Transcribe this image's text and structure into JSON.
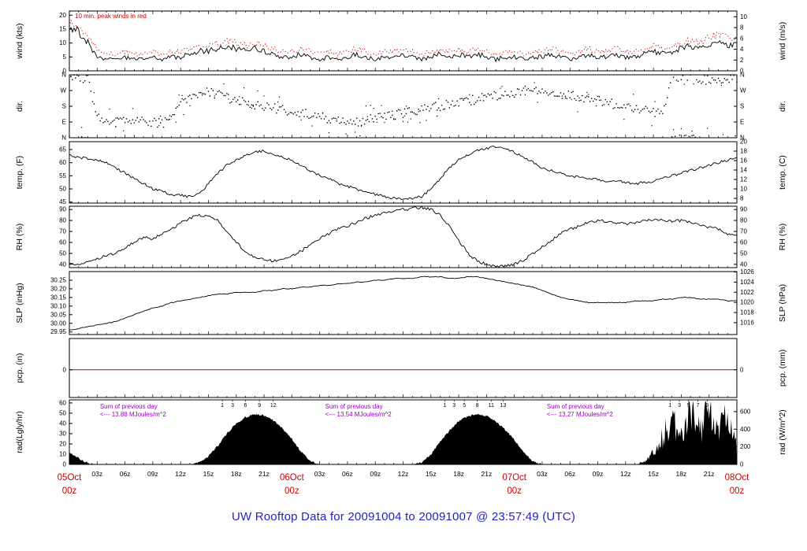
{
  "page": {
    "title": "UW Rooftop Data for 20091004  to  20091007 @ 23:57:49  (UTC)",
    "title_color": "#2222cc"
  },
  "chart_data": {
    "type": "line",
    "x_axis": {
      "unit": "hours since 05 Oct 2009 00z",
      "start_hour": 0,
      "end_hour": 72,
      "hour_labels": [
        {
          "hour": 3,
          "label": "03z"
        },
        {
          "hour": 6,
          "label": "06z"
        },
        {
          "hour": 9,
          "label": "09z"
        },
        {
          "hour": 12,
          "label": "12z"
        },
        {
          "hour": 15,
          "label": "15z"
        },
        {
          "hour": 18,
          "label": "18z"
        },
        {
          "hour": 21,
          "label": "21z"
        },
        {
          "hour": 27,
          "label": "03z"
        },
        {
          "hour": 30,
          "label": "06z"
        },
        {
          "hour": 33,
          "label": "09z"
        },
        {
          "hour": 36,
          "label": "12z"
        },
        {
          "hour": 39,
          "label": "15z"
        },
        {
          "hour": 42,
          "label": "18z"
        },
        {
          "hour": 45,
          "label": "21z"
        },
        {
          "hour": 51,
          "label": "03z"
        },
        {
          "hour": 54,
          "label": "06z"
        },
        {
          "hour": 57,
          "label": "09z"
        },
        {
          "hour": 60,
          "label": "12z"
        },
        {
          "hour": 63,
          "label": "15z"
        },
        {
          "hour": 66,
          "label": "18z"
        },
        {
          "hour": 69,
          "label": "21z"
        }
      ],
      "day_ticks": [
        {
          "hour": 0,
          "date": "05Oct",
          "time": "00z"
        },
        {
          "hour": 24,
          "date": "06Oct",
          "time": "00z"
        },
        {
          "hour": 48,
          "date": "07Oct",
          "time": "00z"
        },
        {
          "hour": 72,
          "date": "08Oct",
          "time": "00z"
        }
      ]
    },
    "colors": {
      "line": "#000000",
      "peak_wind": "#cc0000",
      "precip_line": "#cc0000",
      "day_label": "#cc0000",
      "annotation_purple": "#9900bb",
      "wind_note_red": "#cc0000"
    },
    "panels": [
      {
        "id": "wind",
        "ylabel_left": "wind (kts)",
        "ylabel_right": "wind (m/s)",
        "left_domain": [
          0,
          21.5
        ],
        "right_domain": [
          0,
          11.06
        ],
        "left_ticks": [
          {
            "v": 0,
            "label": "0"
          },
          {
            "v": 5,
            "label": "5"
          },
          {
            "v": 10,
            "label": "10"
          },
          {
            "v": 15,
            "label": "15"
          },
          {
            "v": 20,
            "label": "20"
          }
        ],
        "right_ticks": [
          {
            "v": 0,
            "label": "0"
          },
          {
            "v": 2,
            "label": "2"
          },
          {
            "v": 4,
            "label": "4"
          },
          {
            "v": 6,
            "label": "6"
          },
          {
            "v": 8,
            "label": "8"
          },
          {
            "v": 10,
            "label": "10"
          }
        ],
        "series": [
          "wind_kts",
          "peak_wind_kts"
        ]
      },
      {
        "id": "dir",
        "ylabel_left": "dir.",
        "ylabel_right": "dir.",
        "left_domain": [
          0,
          360
        ],
        "right_domain": [
          0,
          360
        ],
        "left_ticks": [
          {
            "v": 0,
            "label": "N"
          },
          {
            "v": 90,
            "label": "E"
          },
          {
            "v": 180,
            "label": "S"
          },
          {
            "v": 270,
            "label": "W"
          },
          {
            "v": 360,
            "label": "N"
          }
        ],
        "right_ticks": [
          {
            "v": 0,
            "label": "N"
          },
          {
            "v": 90,
            "label": "E"
          },
          {
            "v": 180,
            "label": "S"
          },
          {
            "v": 270,
            "label": "W"
          },
          {
            "v": 360,
            "label": "N"
          }
        ],
        "series": [
          "dir_deg"
        ]
      },
      {
        "id": "temp",
        "ylabel_left": "temp. (F)",
        "ylabel_right": "temp. (C)",
        "left_domain": [
          44.6,
          68
        ],
        "right_domain": [
          7,
          20
        ],
        "left_ticks": [
          {
            "v": 45,
            "label": "45"
          },
          {
            "v": 50,
            "label": "50"
          },
          {
            "v": 55,
            "label": "55"
          },
          {
            "v": 60,
            "label": "60"
          },
          {
            "v": 65,
            "label": "65"
          }
        ],
        "right_ticks": [
          {
            "v": 8,
            "label": "8"
          },
          {
            "v": 10,
            "label": "10"
          },
          {
            "v": 12,
            "label": "12"
          },
          {
            "v": 14,
            "label": "14"
          },
          {
            "v": 16,
            "label": "16"
          },
          {
            "v": 18,
            "label": "18"
          },
          {
            "v": 20,
            "label": "20"
          }
        ],
        "series": [
          "temp_f"
        ]
      },
      {
        "id": "rh",
        "ylabel_left": "RH (%)",
        "ylabel_right": "RH (%)",
        "left_domain": [
          37,
          93
        ],
        "right_domain": [
          37,
          93
        ],
        "left_ticks": [
          {
            "v": 40,
            "label": "40"
          },
          {
            "v": 50,
            "label": "50"
          },
          {
            "v": 60,
            "label": "60"
          },
          {
            "v": 70,
            "label": "70"
          },
          {
            "v": 80,
            "label": "80"
          },
          {
            "v": 90,
            "label": "90"
          }
        ],
        "right_ticks": [
          {
            "v": 40,
            "label": "40"
          },
          {
            "v": 50,
            "label": "50"
          },
          {
            "v": 60,
            "label": "60"
          },
          {
            "v": 70,
            "label": "70"
          },
          {
            "v": 80,
            "label": "80"
          },
          {
            "v": 90,
            "label": "90"
          }
        ],
        "series": [
          "slp_placeholder_rh"
        ]
      },
      {
        "id": "slp",
        "ylabel_left": "SLP (inHg)",
        "ylabel_right": "SLP (hPa)",
        "left_domain": [
          29.935,
          30.3
        ],
        "right_domain": [
          1013.66,
          1026.08
        ],
        "left_ticks": [
          {
            "v": 29.95,
            "label": "29.95"
          },
          {
            "v": 30.0,
            "label": "30.00"
          },
          {
            "v": 30.05,
            "label": "30.05"
          },
          {
            "v": 30.1,
            "label": "30.10"
          },
          {
            "v": 30.15,
            "label": "30.15"
          },
          {
            "v": 30.2,
            "label": "30.20"
          },
          {
            "v": 30.25,
            "label": "30.25"
          }
        ],
        "right_ticks": [
          {
            "v": 1016,
            "label": "1016"
          },
          {
            "v": 1018,
            "label": "1018"
          },
          {
            "v": 1020,
            "label": "1020"
          },
          {
            "v": 1022,
            "label": "1022"
          },
          {
            "v": 1024,
            "label": "1024"
          },
          {
            "v": 1026,
            "label": "1026"
          }
        ],
        "series": [
          "slp_inhg"
        ]
      },
      {
        "id": "pcp",
        "ylabel_left": "pcp. (in)",
        "ylabel_right": "pcp. (mm)",
        "left_domain": [
          -0.47,
          0.53
        ],
        "right_domain": [
          -0.47,
          0.53
        ],
        "left_ticks": [
          {
            "v": 0,
            "label": "0"
          }
        ],
        "right_ticks": [
          {
            "v": 0,
            "label": "0"
          }
        ],
        "series": [
          "pcp_in_constant"
        ]
      },
      {
        "id": "rad",
        "ylabel_left": "rad(Lgly/hr)",
        "ylabel_right": "rad (W/m^2)",
        "left_domain": [
          0,
          63
        ],
        "right_domain": [
          0,
          733
        ],
        "left_ticks": [
          {
            "v": 0,
            "label": "0"
          },
          {
            "v": 10,
            "label": "10"
          },
          {
            "v": 20,
            "label": "20"
          },
          {
            "v": 30,
            "label": "30"
          },
          {
            "v": 40,
            "label": "40"
          },
          {
            "v": 50,
            "label": "50"
          },
          {
            "v": 60,
            "label": "60"
          }
        ],
        "right_ticks": [
          {
            "v": 0,
            "label": "0"
          },
          {
            "v": 200,
            "label": "200"
          },
          {
            "v": 400,
            "label": "400"
          },
          {
            "v": 600,
            "label": "600"
          }
        ],
        "series": [
          "rad_lgly"
        ]
      }
    ],
    "series": {
      "note": "hourly values, index = hours since 05Oct 00z (0..72)",
      "wind_kts": [
        15,
        14,
        10,
        5,
        4,
        4,
        5,
        4,
        4,
        5,
        4,
        5,
        5,
        6,
        7,
        7,
        8,
        9,
        8,
        7,
        8,
        7,
        6,
        5,
        5,
        6,
        5,
        4,
        5,
        4,
        5,
        6,
        5,
        4,
        5,
        5,
        6,
        5,
        4,
        5,
        6,
        5,
        6,
        5,
        6,
        5,
        4,
        5,
        5,
        4,
        5,
        5,
        6,
        5,
        4,
        5,
        6,
        5,
        5,
        6,
        5,
        5,
        6,
        7,
        6,
        7,
        8,
        9,
        8,
        9,
        10,
        9,
        9
      ],
      "peak_wind_kts": [
        17,
        16,
        13,
        7,
        6,
        6,
        7,
        6,
        6,
        7,
        6,
        7,
        7,
        8,
        9,
        9,
        10,
        11,
        10,
        9,
        10,
        9,
        8,
        7,
        7,
        8,
        7,
        6,
        7,
        6,
        7,
        8,
        7,
        6,
        7,
        7,
        8,
        7,
        6,
        7,
        8,
        7,
        8,
        7,
        8,
        7,
        6,
        7,
        7,
        6,
        7,
        7,
        8,
        7,
        6,
        7,
        8,
        7,
        7,
        8,
        7,
        7,
        8,
        9,
        8,
        9,
        10,
        11,
        10,
        12,
        13,
        12,
        12
      ],
      "dir_deg": [
        350,
        345,
        340,
        120,
        100,
        90,
        110,
        95,
        100,
        90,
        85,
        95,
        200,
        220,
        240,
        260,
        250,
        230,
        210,
        200,
        190,
        180,
        170,
        160,
        150,
        140,
        130,
        120,
        110,
        100,
        95,
        90,
        100,
        110,
        120,
        130,
        140,
        150,
        160,
        170,
        180,
        190,
        200,
        210,
        220,
        230,
        240,
        250,
        260,
        270,
        280,
        270,
        260,
        250,
        240,
        230,
        220,
        210,
        200,
        190,
        180,
        170,
        160,
        150,
        140,
        345,
        350,
        355,
        340,
        330,
        335,
        340,
        345
      ],
      "temp_f": [
        63,
        62,
        61.5,
        61,
        60,
        58,
        56,
        54,
        52,
        50,
        49,
        48,
        47.5,
        47,
        48,
        52,
        56,
        59,
        61,
        63,
        64,
        64.5,
        63,
        62,
        61,
        59,
        57,
        55,
        54,
        52,
        51,
        50,
        49,
        48,
        47,
        46.5,
        46,
        46.5,
        47,
        50,
        54,
        58,
        61,
        63,
        64.5,
        65.5,
        66,
        65,
        64,
        62,
        60,
        58,
        57,
        56,
        55,
        54.5,
        54,
        53.5,
        53,
        53,
        52.5,
        52,
        52.5,
        53,
        54,
        55,
        56,
        57,
        58,
        59,
        60,
        61,
        62
      ],
      "rh_pct": [
        41,
        40,
        42,
        45,
        48,
        50,
        55,
        60,
        65,
        63,
        68,
        72,
        78,
        82,
        85,
        84,
        80,
        70,
        60,
        52,
        46,
        44,
        43,
        45,
        48,
        52,
        58,
        64,
        68,
        72,
        75,
        78,
        82,
        85,
        87,
        88,
        90,
        91,
        92,
        90,
        85,
        75,
        62,
        50,
        43,
        40,
        38,
        39,
        40,
        44,
        50,
        56,
        62,
        68,
        72,
        75,
        78,
        80,
        79,
        78,
        77,
        78,
        80,
        81,
        80,
        79,
        80,
        78,
        76,
        74,
        72,
        68,
        65
      ],
      "slp_inhg": [
        29.96,
        29.97,
        29.98,
        29.99,
        30.0,
        30.01,
        30.03,
        30.05,
        30.07,
        30.09,
        30.1,
        30.12,
        30.13,
        30.14,
        30.15,
        30.16,
        30.17,
        30.17,
        30.18,
        30.18,
        30.18,
        30.19,
        30.19,
        30.2,
        30.2,
        30.21,
        30.21,
        30.22,
        30.22,
        30.23,
        30.23,
        30.24,
        30.24,
        30.25,
        30.25,
        30.26,
        30.26,
        30.26,
        30.27,
        30.27,
        30.27,
        30.26,
        30.26,
        30.27,
        30.27,
        30.26,
        30.25,
        30.24,
        30.23,
        30.22,
        30.21,
        30.19,
        30.17,
        30.15,
        30.14,
        30.13,
        30.12,
        30.12,
        30.12,
        30.12,
        30.12,
        30.13,
        30.13,
        30.13,
        30.14,
        30.14,
        30.15,
        30.15,
        30.14,
        30.14,
        30.14,
        30.13,
        30.13
      ],
      "pcp_in_constant": 0,
      "rad_lgly": [
        12,
        6,
        1,
        0,
        0,
        0,
        0,
        0,
        0,
        0,
        0,
        0,
        0,
        0,
        2,
        8,
        18,
        30,
        40,
        46,
        49,
        48,
        43,
        35,
        25,
        12,
        3,
        0,
        0,
        0,
        0,
        0,
        0,
        0,
        0,
        0,
        0,
        0,
        2,
        10,
        22,
        33,
        42,
        47,
        49,
        47,
        42,
        34,
        24,
        12,
        3,
        0,
        0,
        0,
        0,
        0,
        0,
        0,
        0,
        0,
        0,
        0,
        3,
        12,
        30,
        45,
        38,
        55,
        35,
        58,
        40,
        50,
        30
      ],
      "rad_spiky_from_hour": 62
    },
    "annotations": {
      "wind_note": {
        "text": "10 min. peak winds in red",
        "hour": 0.6
      },
      "rad_sums": [
        {
          "hour": 3.3,
          "line1": "Sum of previous day",
          "line2": "<--- 13.88 MJoules/m^2"
        },
        {
          "hour": 27.6,
          "line1": "Sum of previous day",
          "line2": "<--- 13.54 MJoules/m^2"
        },
        {
          "hour": 51.5,
          "line1": "Sum of previous day",
          "line2": "<--- 13.27 MJoules/m^2"
        }
      ],
      "rad_hour_marks": [
        {
          "hour": 16.5,
          "label": "1"
        },
        {
          "hour": 17.6,
          "label": "3"
        },
        {
          "hour": 19.0,
          "label": "6"
        },
        {
          "hour": 20.5,
          "label": "9"
        },
        {
          "hour": 22.0,
          "label": "12"
        },
        {
          "hour": 40.5,
          "label": "1"
        },
        {
          "hour": 41.5,
          "label": "3"
        },
        {
          "hour": 42.6,
          "label": "5"
        },
        {
          "hour": 44.0,
          "label": "8"
        },
        {
          "hour": 45.5,
          "label": "11"
        },
        {
          "hour": 46.8,
          "label": "13"
        },
        {
          "hour": 64.8,
          "label": "1"
        },
        {
          "hour": 65.8,
          "label": "3"
        },
        {
          "hour": 66.8,
          "label": "5"
        },
        {
          "hour": 67.8,
          "label": "7"
        },
        {
          "hour": 68.8,
          "label": "9"
        }
      ]
    }
  }
}
